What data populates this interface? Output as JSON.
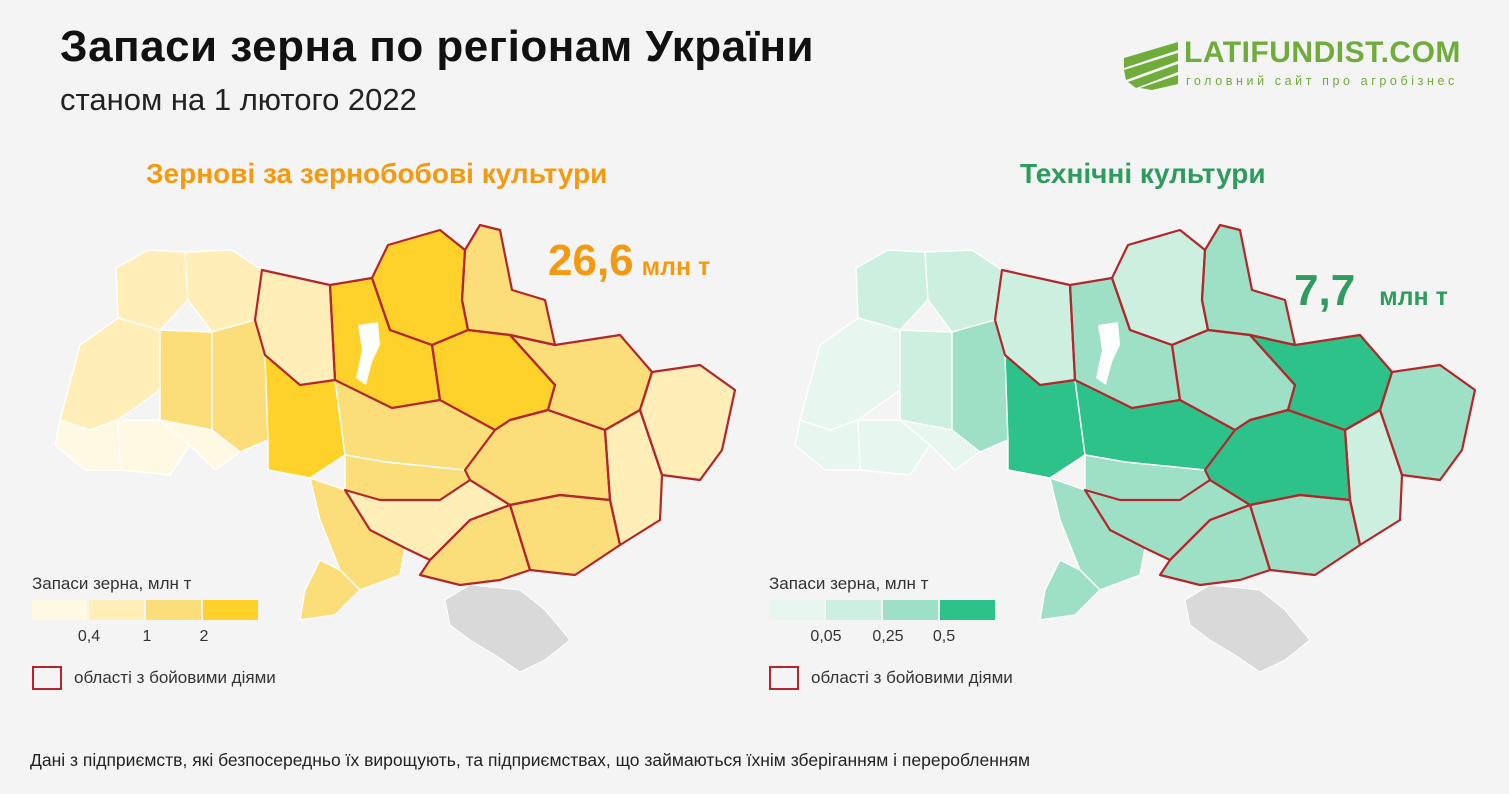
{
  "header": {
    "title": "Запаси зерна по регіонам України",
    "subtitle": "станом на 1 лютого 2022"
  },
  "logo": {
    "name": "LATIFUNDIST.COM",
    "tagline": "головний сайт про агробізнес",
    "color": "#6fac3a"
  },
  "maps": [
    {
      "title": "Зернові за зернобобові культури",
      "total_value": "26,6",
      "total_unit": "млн т",
      "accent": "#f39a12",
      "palette": [
        "#fff9e3",
        "#ffeeb8",
        "#fbdd7a",
        "#ffd22b"
      ],
      "legend_title": "Запаси зерна, млн т",
      "legend_ticks": [
        "0,4",
        "1",
        "2"
      ],
      "combat_label": "області з бойовими діями"
    },
    {
      "title": "Технічні культури",
      "total_value": "7,7",
      "total_unit": "млн т",
      "accent": "#2e9b5f",
      "palette": [
        "#e8f6f0",
        "#ccefe0",
        "#9de0c5",
        "#2dc28a"
      ],
      "legend_title": "Запаси зерна, млн т",
      "legend_ticks": [
        "0,05",
        "0,25",
        "0,5"
      ],
      "combat_label": "області з бойовими діями"
    }
  ],
  "crimea_color": "#d9d9d9",
  "combat_color": "#b3262b",
  "footer": "Дані з підприємств, які безпосередньо їх вирощують, та підприємствах, що займаються їхнім зберіганням і переробленням"
}
